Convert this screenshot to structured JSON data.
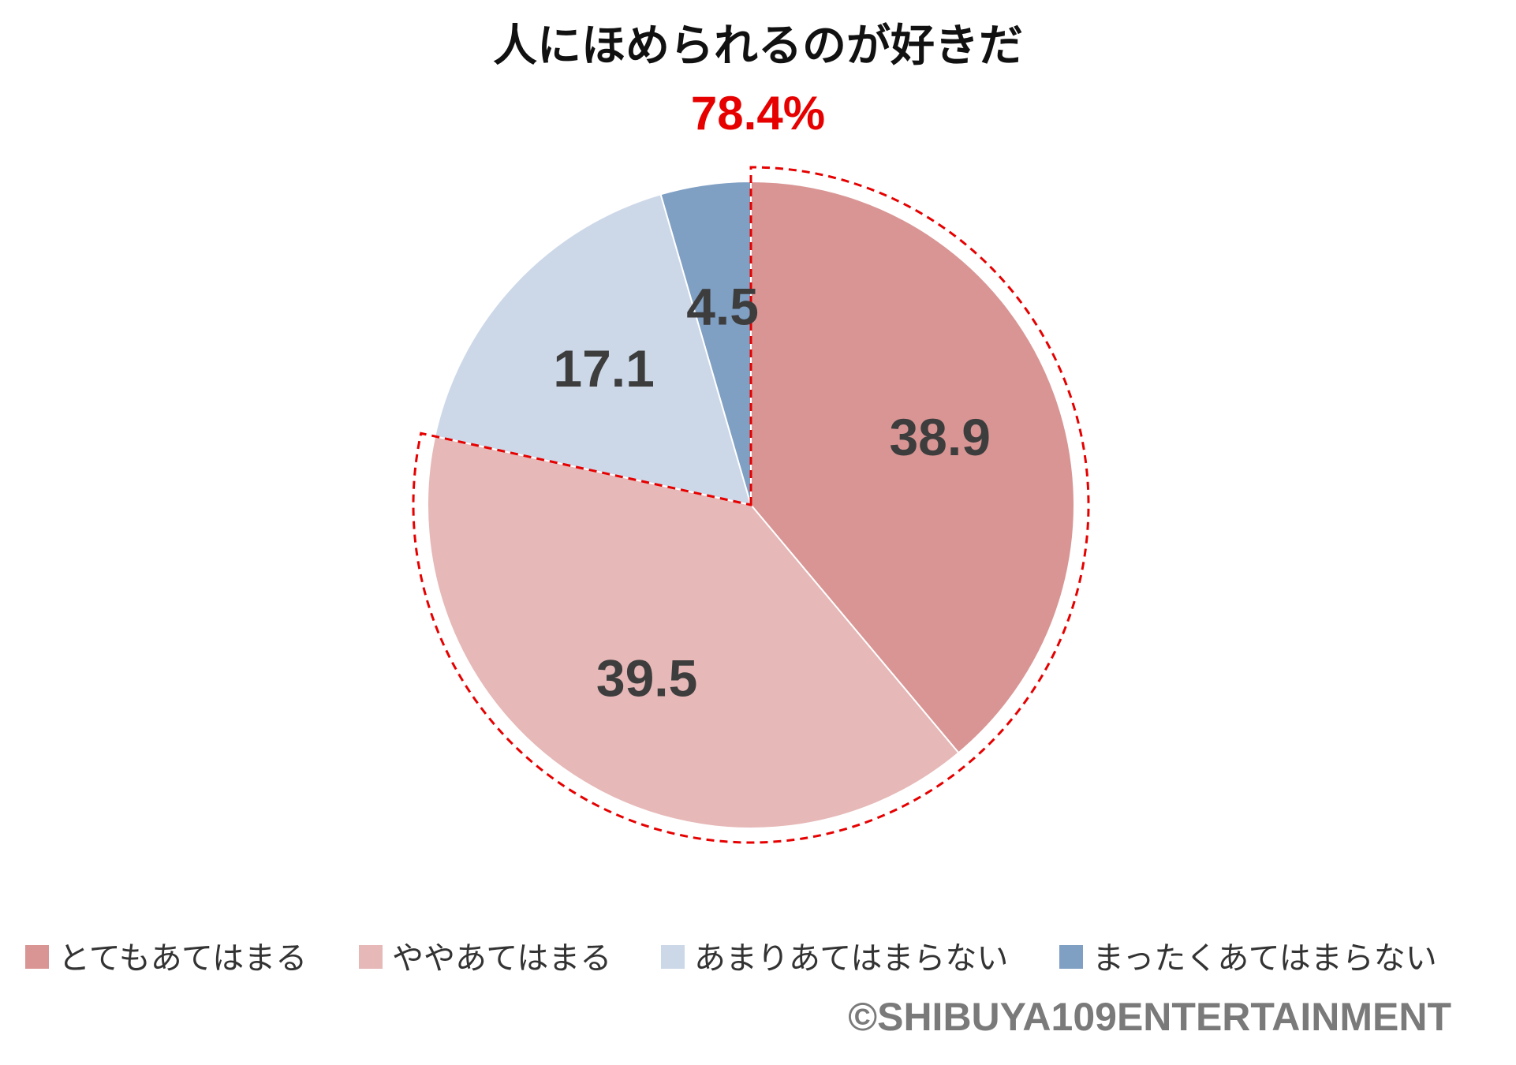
{
  "chart_data": {
    "type": "pie",
    "title": "人にほめられるのが好きだ",
    "subtitle": "78.4%",
    "subtitle_color": "#e60000",
    "highlight_outline_color": "#e60000",
    "highlight_series_count": 2,
    "slices": [
      {
        "label": "とてもあてはまる",
        "value": 38.9,
        "display": "38.9",
        "color": "#d99594"
      },
      {
        "label": "ややあてはまる",
        "value": 39.5,
        "display": "39.5",
        "color": "#e6b8b7"
      },
      {
        "label": "あまりあてはまらない",
        "value": 17.1,
        "display": "17.1",
        "color": "#ccd8e8"
      },
      {
        "label": "まったくあてはまらない",
        "value": 4.5,
        "display": "4.5",
        "color": "#7f9fc3"
      }
    ],
    "start_angle": "12 o'clock",
    "direction": "clockwise",
    "legend_position": "bottom"
  },
  "credit": "©SHIBUYA109ENTERTAINMENT"
}
